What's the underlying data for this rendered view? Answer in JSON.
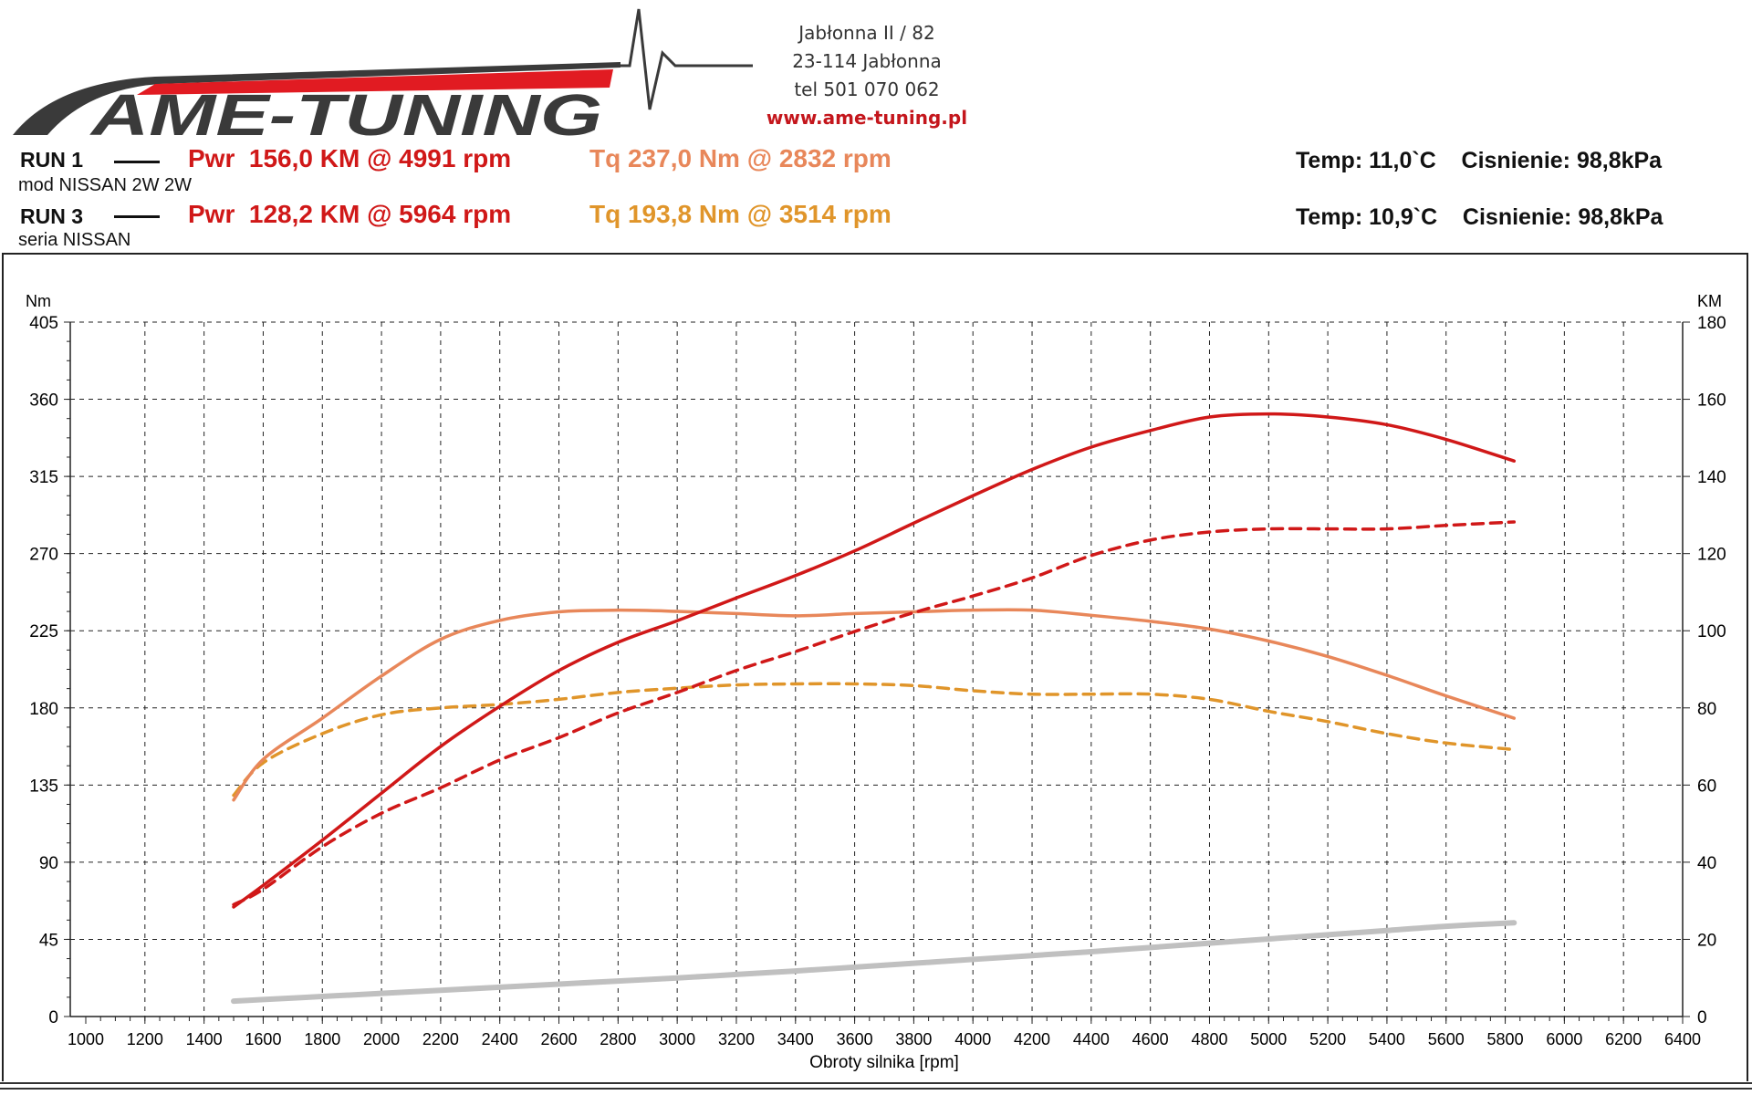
{
  "logo": {
    "text": "AME-TUNING",
    "colors": {
      "gray": "#3a3a3a",
      "red": "#e11b22"
    }
  },
  "address": {
    "line1": "Jabłonna II / 82",
    "line2": "23-114 Jabłonna",
    "line3": "tel 501 070 062",
    "website": "www.ame-tuning.pl"
  },
  "runs": [
    {
      "label": "RUN 1",
      "description": "mod NISSAN 2W 2W",
      "power": "Pwr  156,0 KM @ 4991 rpm",
      "torque": "Tq 237,0 Nm @ 2832 rpm",
      "env": "Temp: 11,0`C    Cisnienie: 98,8kPa"
    },
    {
      "label": "RUN 3",
      "description": "seria NISSAN",
      "power": "Pwr  128,2 KM @ 5964 rpm",
      "torque": "Tq 193,8 Nm @ 3514 rpm",
      "env": "Temp: 10,9`C    Cisnienie: 98,8kPa"
    }
  ],
  "colors": {
    "power": "#d01818",
    "torque_run1": "#e8875a",
    "torque_run3": "#e0952a",
    "loss": "#c0c0c0"
  },
  "chart_data": {
    "type": "line",
    "title": "",
    "xlabel": "Obroty silnika [rpm]",
    "ylabel_left": "Nm",
    "ylabel_right": "KM",
    "xlim": [
      1000,
      6400
    ],
    "ylim_left": [
      0,
      405
    ],
    "ylim_right": [
      0,
      180
    ],
    "x_ticks": [
      1000,
      1200,
      1400,
      1600,
      1800,
      2000,
      2200,
      2400,
      2600,
      2800,
      3000,
      3200,
      3400,
      3600,
      3800,
      4000,
      4200,
      4400,
      4600,
      4800,
      5000,
      5200,
      5400,
      5600,
      5800,
      6000,
      6200,
      6400
    ],
    "y_ticks_left": [
      0,
      45,
      90,
      135,
      180,
      225,
      270,
      315,
      360,
      405
    ],
    "y_ticks_right": [
      0,
      20,
      40,
      60,
      80,
      100,
      120,
      140,
      160,
      180
    ],
    "grid": true,
    "x": [
      1500,
      1600,
      1800,
      2000,
      2200,
      2400,
      2600,
      2800,
      3000,
      3200,
      3400,
      3600,
      3800,
      4000,
      4200,
      4400,
      4600,
      4800,
      5000,
      5200,
      5400,
      5600,
      5830
    ],
    "series": [
      {
        "name": "RUN 1 Pwr",
        "axis": "right",
        "style": "solid",
        "color_key": "power",
        "values": [
          28.4,
          34,
          45.7,
          57.9,
          70,
          80.4,
          89.7,
          97,
          102.6,
          108.5,
          114.3,
          120.7,
          127.9,
          135,
          141.8,
          147.6,
          151.9,
          155.4,
          156.2,
          155.4,
          153.4,
          149.6,
          144
        ]
      },
      {
        "name": "RUN 3 Pwr",
        "axis": "right",
        "style": "dashed",
        "color_key": "power",
        "values": [
          29,
          33,
          44,
          52.7,
          59.3,
          66.5,
          72.3,
          78.7,
          84,
          89.7,
          94.6,
          99.8,
          104.7,
          109,
          113.7,
          119.5,
          123.5,
          125.6,
          126.4,
          126.4,
          126.4,
          127.3,
          128.2
        ]
      },
      {
        "name": "RUN 1 Tq",
        "axis": "left",
        "style": "solid",
        "color_key": "torque_run1",
        "values": [
          126.3,
          150,
          174,
          198.6,
          220,
          231,
          236,
          237,
          236.3,
          235,
          233.7,
          235,
          236,
          237,
          237,
          234,
          230.5,
          226,
          219,
          210,
          199,
          187,
          174
        ]
      },
      {
        "name": "RUN 3 Tq",
        "axis": "left",
        "style": "dashed",
        "color_key": "torque_run3",
        "values": [
          129,
          148,
          165,
          176,
          180,
          182,
          185,
          189,
          191.5,
          193.4,
          194,
          194,
          193,
          190,
          188,
          188,
          188,
          185,
          178,
          172,
          165,
          159.5,
          155.7
        ]
      },
      {
        "name": "Loss",
        "axis": "right",
        "style": "thick",
        "color_key": "loss",
        "values": [
          4,
          4.4,
          5.2,
          6,
          6.8,
          7.6,
          8.4,
          9.2,
          10,
          10.9,
          11.8,
          12.8,
          13.8,
          14.8,
          15.8,
          16.8,
          17.9,
          19,
          20.1,
          21.2,
          22.3,
          23.4,
          24.3
        ]
      }
    ]
  }
}
